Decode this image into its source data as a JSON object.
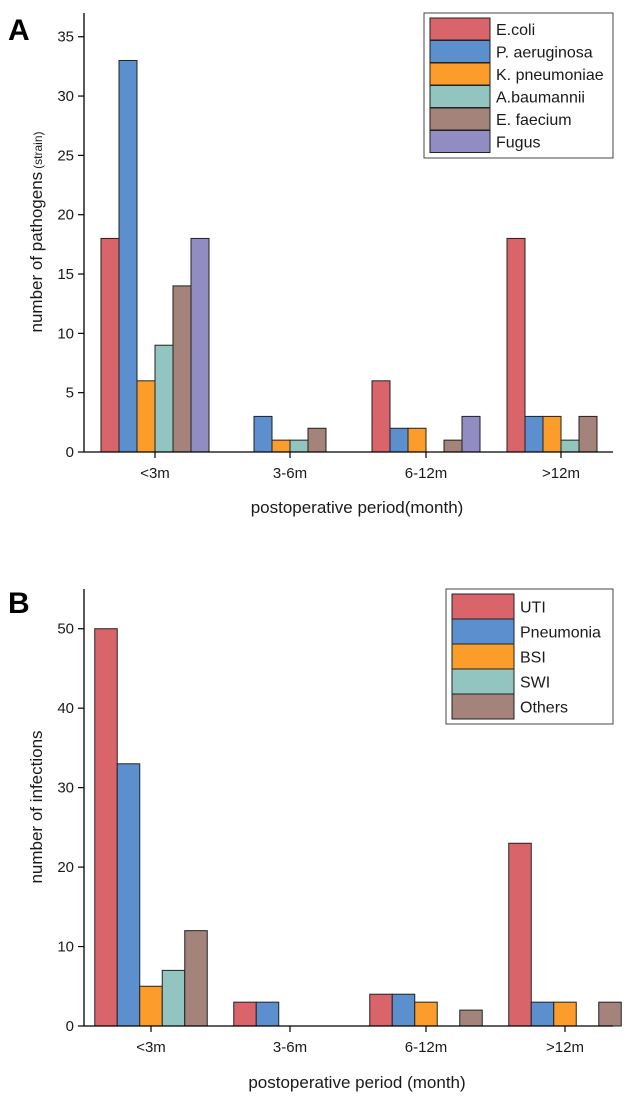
{
  "colors": {
    "red": "#d9646a",
    "blue": "#5b8fcd",
    "orange": "#fb9c2b",
    "teal": "#92c4c0",
    "brown": "#a3837a",
    "purple": "#918dc2"
  },
  "chart_data": [
    {
      "panel": "A",
      "type": "bar",
      "categories": [
        "<3m",
        "3-6m",
        "6-12m",
        ">12m"
      ],
      "xlabel": "postoperative period(month)",
      "ylabel_main": "number of pathogens",
      "ylabel_sub": "(strain)",
      "ylim": [
        0,
        37
      ],
      "yticks": [
        0,
        5,
        10,
        15,
        20,
        25,
        30,
        35
      ],
      "legend_position": "top-right",
      "series": [
        {
          "name": "E.coli",
          "color": "#d9646a",
          "values": [
            18,
            0,
            6,
            18
          ]
        },
        {
          "name": "P. aeruginosa",
          "color": "#5b8fcd",
          "values": [
            33,
            3,
            2,
            3
          ]
        },
        {
          "name": "K. pneumoniae",
          "color": "#fb9c2b",
          "values": [
            6,
            1,
            2,
            3
          ]
        },
        {
          "name": "A.baumannii",
          "color": "#92c4c0",
          "values": [
            9,
            1,
            0,
            1
          ]
        },
        {
          "name": "E. faecium",
          "color": "#a3837a",
          "values": [
            14,
            2,
            1,
            3
          ]
        },
        {
          "name": "Fugus",
          "color": "#918dc2",
          "values": [
            18,
            0,
            3,
            0
          ]
        }
      ]
    },
    {
      "panel": "B",
      "type": "bar",
      "categories": [
        "<3m",
        "3-6m",
        "6-12m",
        ">12m"
      ],
      "xlabel": "postoperative period (month)",
      "ylabel_main": "number of infections",
      "ylabel_sub": "",
      "ylim": [
        0,
        55
      ],
      "yticks": [
        0,
        10,
        20,
        30,
        40,
        50
      ],
      "legend_position": "top-right",
      "series": [
        {
          "name": "UTI",
          "color": "#d9646a",
          "values": [
            50,
            3,
            4,
            23
          ]
        },
        {
          "name": "Pneumonia",
          "color": "#5b8fcd",
          "values": [
            33,
            3,
            4,
            3
          ]
        },
        {
          "name": "BSI",
          "color": "#fb9c2b",
          "values": [
            5,
            0,
            3,
            3
          ]
        },
        {
          "name": "SWI",
          "color": "#92c4c0",
          "values": [
            7,
            0,
            0,
            0
          ]
        },
        {
          "name": "Others",
          "color": "#a3837a",
          "values": [
            12,
            0,
            2,
            3
          ]
        }
      ]
    }
  ]
}
